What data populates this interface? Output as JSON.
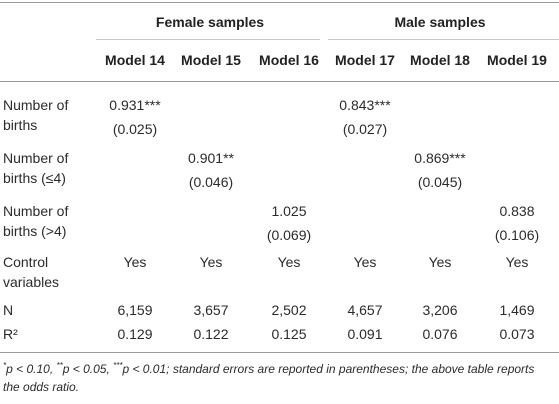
{
  "table": {
    "groups": [
      "Female samples",
      "Male samples"
    ],
    "models": [
      "Model 14",
      "Model 15",
      "Model 16",
      "Model 17",
      "Model 18",
      "Model 19"
    ],
    "rows": [
      {
        "label_line1": "Number of",
        "label_line2": "births",
        "coef": [
          "0.931***",
          "",
          "",
          "0.843***",
          "",
          ""
        ],
        "se": [
          "(0.025)",
          "",
          "",
          "(0.027)",
          "",
          ""
        ]
      },
      {
        "label_line1": "Number of",
        "label_line2": "births (≤4)",
        "coef": [
          "",
          "0.901**",
          "",
          "",
          "0.869***",
          ""
        ],
        "se": [
          "",
          "(0.046)",
          "",
          "",
          "(0.045)",
          ""
        ]
      },
      {
        "label_line1": "Number of",
        "label_line2": "births (>4)",
        "coef": [
          "",
          "",
          "1.025",
          "",
          "",
          "0.838"
        ],
        "se": [
          "",
          "",
          "(0.069)",
          "",
          "",
          "(0.106)"
        ]
      }
    ],
    "controls": {
      "label_line1": "Control",
      "label_line2": "variables",
      "values": [
        "Yes",
        "Yes",
        "Yes",
        "Yes",
        "Yes",
        "Yes"
      ]
    },
    "n": {
      "label": "N",
      "values": [
        "6,159",
        "3,657",
        "2,502",
        "4,657",
        "3,206",
        "1,469"
      ]
    },
    "r2": {
      "label": "R²",
      "values": [
        "0.129",
        "0.122",
        "0.125",
        "0.091",
        "0.076",
        "0.073"
      ]
    }
  },
  "footnote": {
    "sup1": "*",
    "part1": "p < 0.10, ",
    "sup2": "**",
    "part2": "p < 0.05, ",
    "sup3": "***",
    "part3": "p < 0.01; standard errors are reported in parentheses; the above table reports the odds ratio."
  }
}
